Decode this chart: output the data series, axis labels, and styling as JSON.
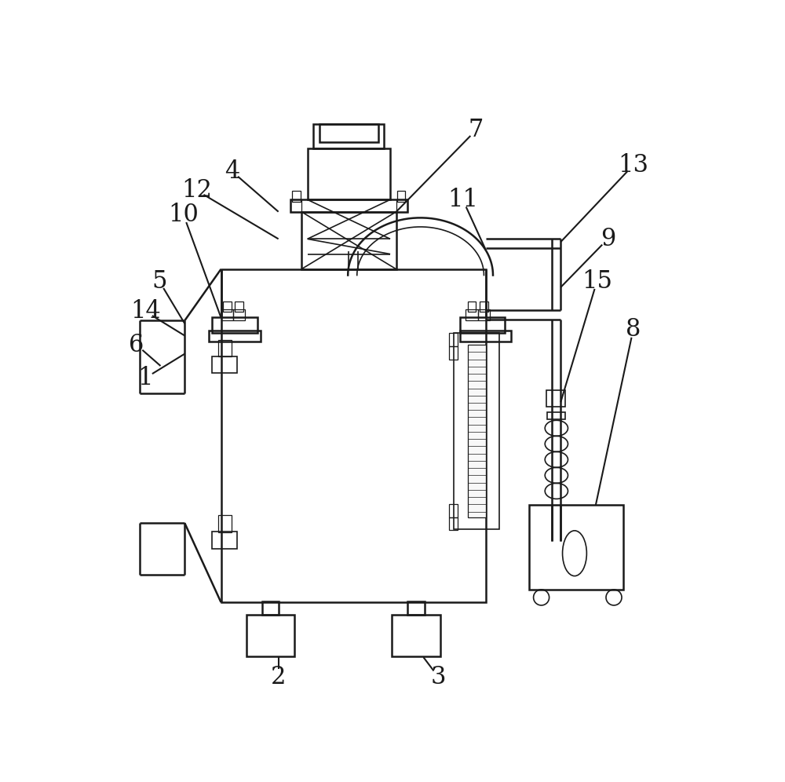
{
  "bg_color": "#ffffff",
  "lc": "#1a1a1a",
  "lw": 1.8,
  "lwt": 1.2,
  "lwd": 0.9
}
